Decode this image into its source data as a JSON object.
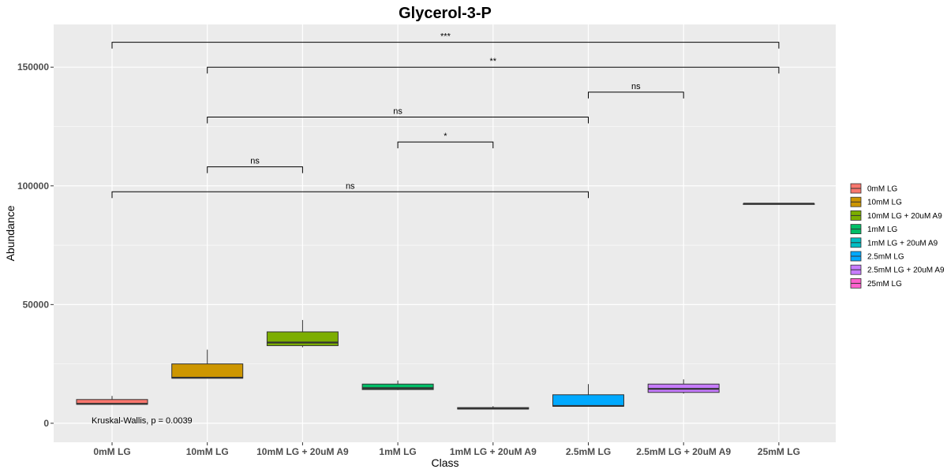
{
  "chart_data": {
    "type": "box",
    "title": "Glycerol-3-P",
    "xlabel": "Class",
    "ylabel": "Abundance",
    "ylim": [
      -8000,
      168000
    ],
    "yticks": [
      0,
      50000,
      100000,
      150000
    ],
    "grid": true,
    "legend_position": "right",
    "categories": [
      "0mM LG",
      "10mM LG",
      "10mM LG + 20uM A9",
      "1mM LG",
      "1mM LG + 20uM A9",
      "2.5mM LG",
      "2.5mM LG + 20uM A9",
      "25mM LG"
    ],
    "colors": [
      "#F8766D",
      "#CD9600",
      "#7CAE00",
      "#00BE67",
      "#00BFC4",
      "#00A9FF",
      "#C77CFF",
      "#FF61CC"
    ],
    "boxes": [
      {
        "category": "0mM LG",
        "min": 8000,
        "q1": 8000,
        "median": 8200,
        "q3": 10000,
        "max": 11500
      },
      {
        "category": "10mM LG",
        "min": 19000,
        "q1": 19000,
        "median": 19200,
        "q3": 25000,
        "max": 31000
      },
      {
        "category": "10mM LG + 20uM A9",
        "min": 32000,
        "q1": 32700,
        "median": 34000,
        "q3": 38500,
        "max": 43500
      },
      {
        "category": "1mM LG",
        "min": 14000,
        "q1": 14200,
        "median": 14800,
        "q3": 16500,
        "max": 18000
      },
      {
        "category": "1mM LG + 20uM A9",
        "min": 6000,
        "q1": 6000,
        "median": 6200,
        "q3": 6600,
        "max": 7200
      },
      {
        "category": "2.5mM LG",
        "min": 7000,
        "q1": 7200,
        "median": 7300,
        "q3": 12000,
        "max": 16500
      },
      {
        "category": "2.5mM LG + 20uM A9",
        "min": 12500,
        "q1": 13000,
        "median": 14500,
        "q3": 16500,
        "max": 18500
      },
      {
        "category": "25mM LG",
        "min": 92500,
        "q1": 92500,
        "median": 92500,
        "q3": 92500,
        "max": 92500
      }
    ],
    "comparisons": [
      {
        "from": "0mM LG",
        "to": "25mM LG",
        "y": 160500,
        "label": "***"
      },
      {
        "from": "10mM LG",
        "to": "25mM LG",
        "y": 150000,
        "label": "**"
      },
      {
        "from": "2.5mM LG",
        "to": "2.5mM LG + 20uM A9",
        "y": 139500,
        "label": "ns"
      },
      {
        "from": "10mM LG",
        "to": "2.5mM LG",
        "y": 129000,
        "label": "ns"
      },
      {
        "from": "1mM LG",
        "to": "1mM LG + 20uM A9",
        "y": 118500,
        "label": "*"
      },
      {
        "from": "10mM LG",
        "to": "10mM LG + 20uM A9",
        "y": 108000,
        "label": "ns"
      },
      {
        "from": "0mM LG",
        "to": "2.5mM LG",
        "y": 97500,
        "label": "ns"
      }
    ],
    "annotation": "Kruskal-Wallis, p = 0.0039"
  }
}
